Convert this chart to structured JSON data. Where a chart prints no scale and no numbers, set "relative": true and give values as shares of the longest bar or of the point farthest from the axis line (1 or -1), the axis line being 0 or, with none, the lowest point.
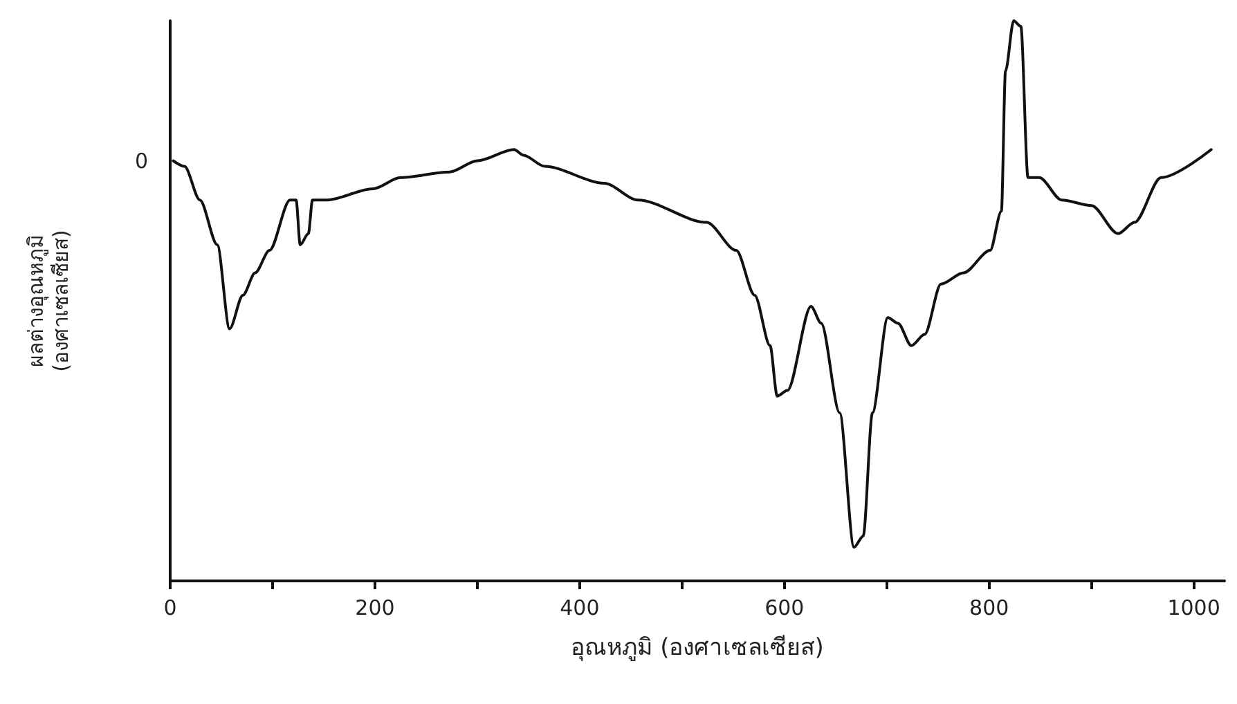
{
  "chart_data": {
    "type": "line",
    "relative": true,
    "xlabel": "อุณหภูมิ (องศาเซลเซียส)",
    "ylabel": "ผลต่างอุณหภูมิ\n(องศาเซลเซียส)",
    "xlim": [
      0,
      1030
    ],
    "xticks": [
      0,
      {
        "value": 100,
        "label": null
      },
      200,
      {
        "value": 300,
        "label": null
      },
      400,
      {
        "value": 500,
        "label": null
      },
      600,
      {
        "value": 700,
        "label": null
      },
      800,
      {
        "value": 900,
        "label": null
      },
      1000
    ],
    "grid": false,
    "marker": "none",
    "line_style": "solid",
    "annotations": [
      {
        "text": "0",
        "x": 0,
        "y": 0.75
      }
    ],
    "series": [
      {
        "color": "#111111",
        "x": [
          3,
          14,
          29,
          46,
          58,
          71,
          83,
          97,
          117,
          123,
          127,
          135,
          139,
          153,
          198,
          225,
          273,
          300,
          336,
          345,
          366,
          424,
          457,
          524,
          553,
          571,
          586,
          593,
          603,
          626,
          636,
          654,
          668,
          677,
          686,
          701,
          711,
          724,
          737,
          753,
          775,
          801,
          812,
          816,
          824,
          831,
          838,
          849,
          871,
          900,
          926,
          942,
          968,
          1017
        ],
        "values": [
          0.75,
          0.74,
          0.68,
          0.6,
          0.45,
          0.51,
          0.55,
          0.59,
          0.68,
          0.68,
          0.6,
          0.62,
          0.68,
          0.68,
          0.7,
          0.72,
          0.73,
          0.75,
          0.77,
          0.76,
          0.74,
          0.71,
          0.68,
          0.64,
          0.59,
          0.51,
          0.42,
          0.33,
          0.34,
          0.49,
          0.46,
          0.3,
          0.06,
          0.08,
          0.3,
          0.47,
          0.46,
          0.42,
          0.44,
          0.53,
          0.55,
          0.59,
          0.66,
          0.91,
          1,
          0.99,
          0.72,
          0.72,
          0.68,
          0.67,
          0.62,
          0.64,
          0.72,
          0.77
        ]
      }
    ]
  }
}
